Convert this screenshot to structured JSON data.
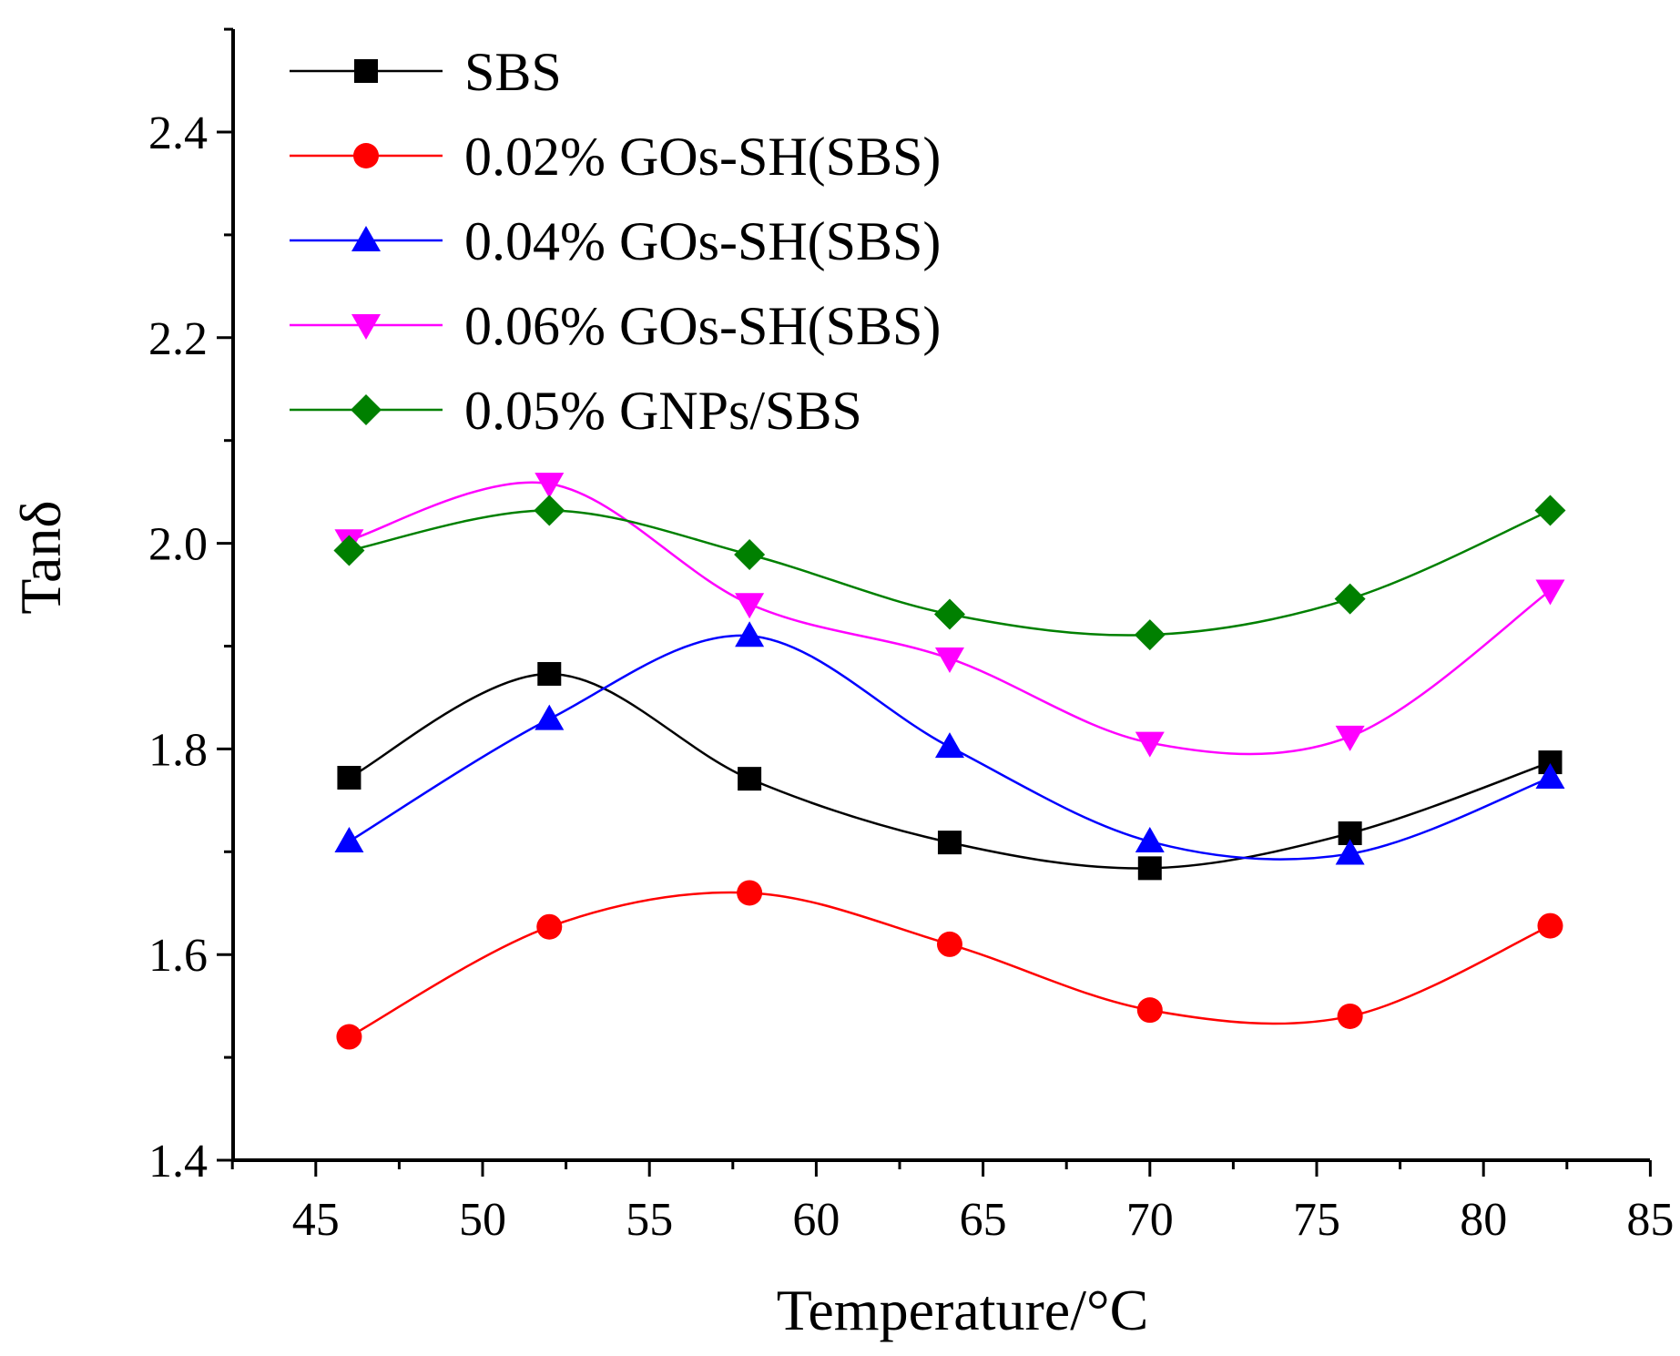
{
  "chart_data": {
    "type": "line",
    "title": "",
    "xlabel": "Temperature/°C",
    "ylabel": "Tanδ",
    "xlim": [
      43,
      85
    ],
    "ylim": [
      1.4,
      2.5
    ],
    "xticks": [
      45,
      50,
      55,
      60,
      65,
      70,
      75,
      80,
      85
    ],
    "xtick_labels": [
      "45",
      "50",
      "55",
      "60",
      "65",
      "70",
      "75",
      "80",
      "85"
    ],
    "yticks": [
      1.4,
      1.6,
      1.8,
      2.0,
      2.2,
      2.4
    ],
    "ytick_labels": [
      "1.4",
      "1.6",
      "1.8",
      "2.0",
      "2.2",
      "2.4"
    ],
    "grid": false,
    "legend_position": "top-left",
    "x": [
      46,
      52,
      58,
      64,
      70,
      76,
      82
    ],
    "series": [
      {
        "name": "SBS",
        "color": "#000000",
        "marker": "square",
        "values": [
          1.772,
          1.873,
          1.771,
          1.709,
          1.684,
          1.718,
          1.787
        ]
      },
      {
        "name": "0.02% GOs-SH(SBS)",
        "color": "#ff0000",
        "marker": "circle",
        "values": [
          1.52,
          1.627,
          1.66,
          1.61,
          1.546,
          1.54,
          1.628
        ]
      },
      {
        "name": "0.04% GOs-SH(SBS)",
        "color": "#0000ff",
        "marker": "triangle-up",
        "values": [
          1.71,
          1.829,
          1.91,
          1.802,
          1.71,
          1.698,
          1.772
        ]
      },
      {
        "name": "0.06% GOs-SH(SBS)",
        "color": "#ff00ff",
        "marker": "triangle-down",
        "values": [
          2.003,
          2.058,
          1.941,
          1.888,
          1.806,
          1.812,
          1.954
        ]
      },
      {
        "name": "0.05% GNPs/SBS",
        "color": "#008000",
        "marker": "diamond",
        "values": [
          1.993,
          2.032,
          1.989,
          1.931,
          1.911,
          1.946,
          2.032
        ]
      }
    ]
  }
}
